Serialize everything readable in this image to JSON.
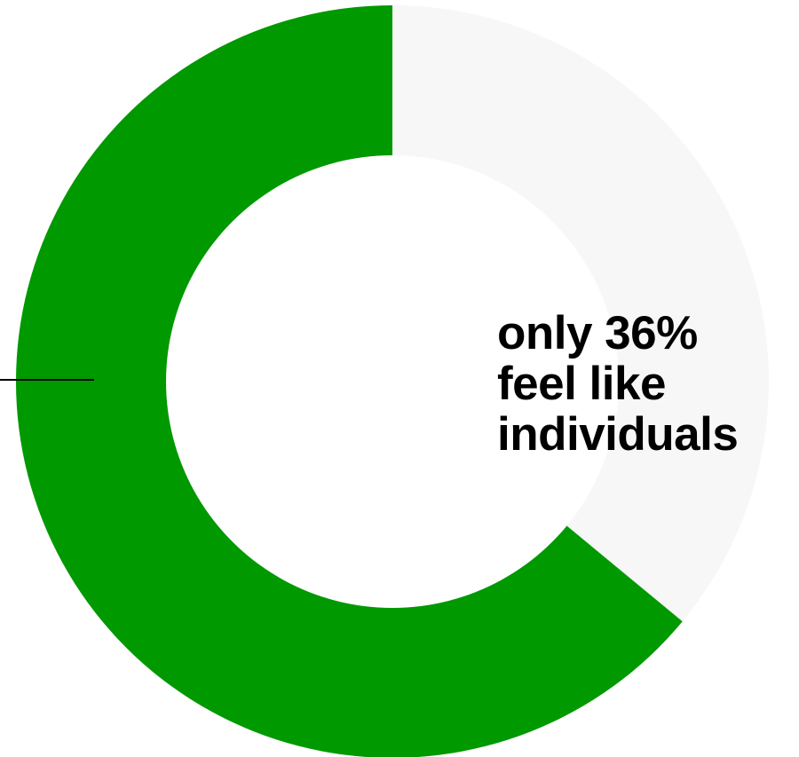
{
  "chart_data": {
    "type": "pie",
    "variant": "donut",
    "slices": [
      {
        "value": 36,
        "color": "#f7f7f7"
      },
      {
        "value": 64,
        "color": "#009900"
      }
    ],
    "annotation": {
      "lines": [
        "only 36%",
        "feel like",
        "individuals"
      ]
    }
  }
}
